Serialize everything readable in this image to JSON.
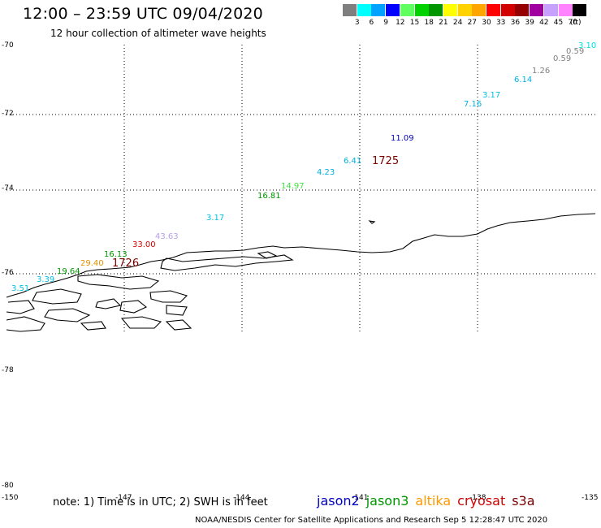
{
  "title": "12:00 – 23:59 UTC 09/04/2020",
  "subtitle": "12 hour collection of altimeter wave heights",
  "color_scale": {
    "unit": "(ft)",
    "colors": [
      "#7f7f7f",
      "#00ffff",
      "#00a2ff",
      "#0000ff",
      "#5fff5f",
      "#00d200",
      "#009600",
      "#ffff00",
      "#ffd200",
      "#ffa500",
      "#ff0000",
      "#d20000",
      "#960000",
      "#a000a0",
      "#c8a0ff",
      "#ff82ff",
      "#000000"
    ],
    "labels": [
      "3",
      "6",
      "9",
      "12",
      "15",
      "18",
      "21",
      "24",
      "27",
      "30",
      "33",
      "36",
      "39",
      "42",
      "45",
      "70"
    ]
  },
  "axes": {
    "lat_labels": [
      "-70",
      "-72",
      "-74",
      "-76",
      "-78",
      "-80"
    ],
    "lon_labels": [
      "-150",
      "-147",
      "-144",
      "-141",
      "-138",
      "-135"
    ]
  },
  "observations": [
    {
      "text": "3.10",
      "color": "#00e0e0"
    },
    {
      "text": "0.59",
      "color": "#808080"
    },
    {
      "text": "0.59",
      "color": "#808080"
    },
    {
      "text": "1.26",
      "color": "#808080"
    },
    {
      "text": "6.14",
      "color": "#00b0e0"
    },
    {
      "text": "3.17",
      "color": "#00c0e0"
    },
    {
      "text": "7.16",
      "color": "#00b0e0"
    },
    {
      "text": "11.09",
      "color": "#0000c0"
    },
    {
      "text": "6.41",
      "color": "#00b0e0"
    },
    {
      "text": "4.23",
      "color": "#00b0e0"
    },
    {
      "text": "14.97",
      "color": "#40e040"
    },
    {
      "text": "16.81",
      "color": "#009600"
    },
    {
      "text": "3.17",
      "color": "#00c0e0"
    },
    {
      "text": "43.63",
      "color": "#b8a0e8"
    },
    {
      "text": "33.00",
      "color": "#d20000"
    },
    {
      "text": "16.13",
      "color": "#009600"
    },
    {
      "text": "29.40",
      "color": "#e09000"
    },
    {
      "text": "19.64",
      "color": "#009600"
    },
    {
      "text": "3.39",
      "color": "#00c0e0"
    },
    {
      "text": "3.51",
      "color": "#00c0e0"
    }
  ],
  "time_tags": [
    "1725",
    "1726"
  ],
  "note": "note: 1) Time is in UTC; 2) SWH is in feet",
  "legend": [
    {
      "name": "jason2",
      "color": "#0000c0"
    },
    {
      "name": "jason3",
      "color": "#009600"
    },
    {
      "name": "altika",
      "color": "#ff9900"
    },
    {
      "name": "cryosat",
      "color": "#d20000"
    },
    {
      "name": "s3a",
      "color": "#7a0000"
    }
  ],
  "footer": "NOAA/NESDIS Center for Satellite Applications and Research    Sep  5 12:28:47 UTC 2020"
}
